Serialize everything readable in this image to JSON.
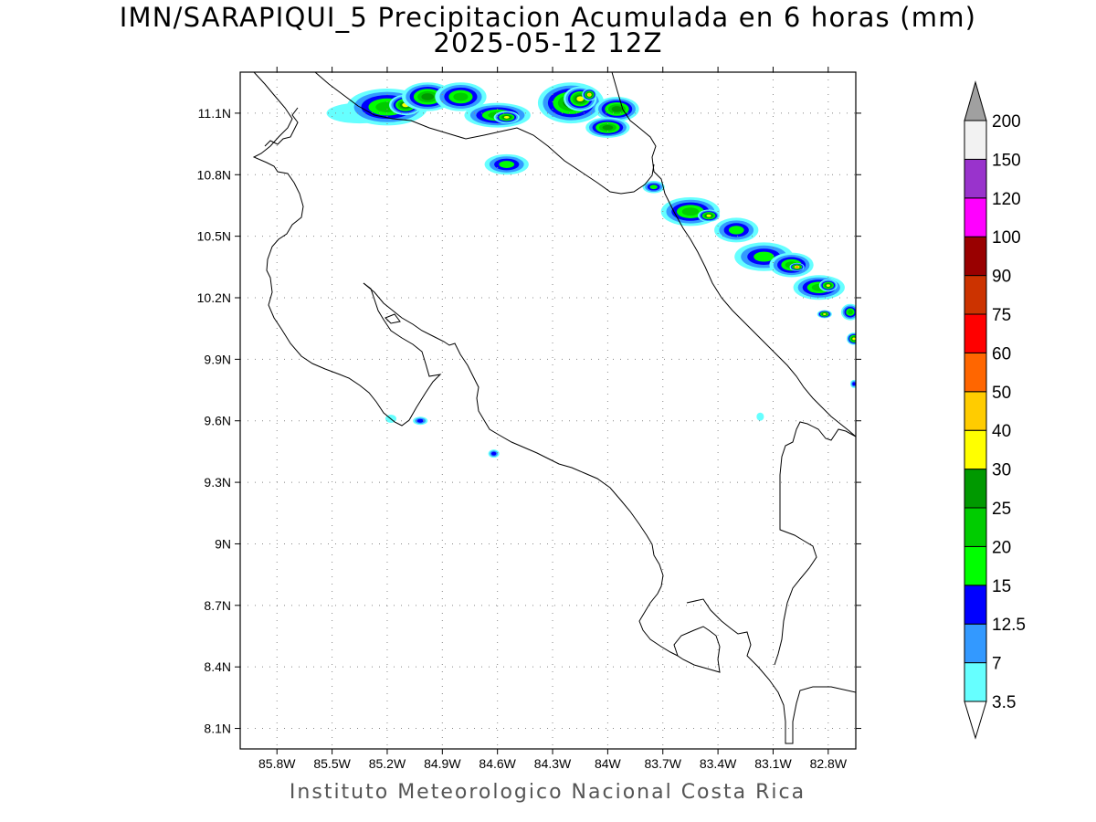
{
  "title": "IMN/SARAPIQUI_5 Precipitacion Acumulada en 6 horas (mm)",
  "subtitle": "2025-05-12 12Z",
  "footer": "Instituto Meteorologico Nacional Costa Rica",
  "map": {
    "lon_range": [
      -86.0,
      -82.65
    ],
    "lat_range": [
      8.0,
      11.3
    ],
    "x_ticks": [
      {
        "lon": -85.8,
        "label": "85.8W"
      },
      {
        "lon": -85.5,
        "label": "85.5W"
      },
      {
        "lon": -85.2,
        "label": "85.2W"
      },
      {
        "lon": -84.9,
        "label": "84.9W"
      },
      {
        "lon": -84.6,
        "label": "84.6W"
      },
      {
        "lon": -84.3,
        "label": "84.3W"
      },
      {
        "lon": -84.0,
        "label": "84W"
      },
      {
        "lon": -83.7,
        "label": "83.7W"
      },
      {
        "lon": -83.4,
        "label": "83.4W"
      },
      {
        "lon": -83.1,
        "label": "83.1W"
      },
      {
        "lon": -82.8,
        "label": "82.8W"
      }
    ],
    "y_ticks": [
      {
        "lat": 11.1,
        "label": "11.1N"
      },
      {
        "lat": 10.8,
        "label": "10.8N"
      },
      {
        "lat": 10.5,
        "label": "10.5N"
      },
      {
        "lat": 10.2,
        "label": "10.2N"
      },
      {
        "lat": 9.9,
        "label": "9.9N"
      },
      {
        "lat": 9.6,
        "label": "9.6N"
      },
      {
        "lat": 9.3,
        "label": "9.3N"
      },
      {
        "lat": 9.0,
        "label": "9N"
      },
      {
        "lat": 8.7,
        "label": "8.7N"
      },
      {
        "lat": 8.4,
        "label": "8.4N"
      },
      {
        "lat": 8.1,
        "label": "8.1N"
      }
    ],
    "grid": "dotted"
  },
  "colorbar": {
    "unit": "mm",
    "bins": [
      {
        "label": "3.5",
        "color": "#66FFFF"
      },
      {
        "label": "7",
        "color": "#3399FF"
      },
      {
        "label": "12.5",
        "color": "#0000FF"
      },
      {
        "label": "15",
        "color": "#00FF00"
      },
      {
        "label": "20",
        "color": "#00CC00"
      },
      {
        "label": "25",
        "color": "#009900"
      },
      {
        "label": "30",
        "color": "#FFFF00"
      },
      {
        "label": "40",
        "color": "#FFCC00"
      },
      {
        "label": "50",
        "color": "#FF6600"
      },
      {
        "label": "60",
        "color": "#FF0000"
      },
      {
        "label": "75",
        "color": "#CC3300"
      },
      {
        "label": "90",
        "color": "#990000"
      },
      {
        "label": "100",
        "color": "#FF00FF"
      },
      {
        "label": "120",
        "color": "#9933CC"
      },
      {
        "label": "150",
        "color": "#F2F2F2"
      },
      {
        "label": "200",
        "color": "#A0A0A0"
      }
    ]
  },
  "precip_cells": [
    {
      "lon": -85.35,
      "lat": 11.1,
      "rx": 0.18,
      "ry": 0.05,
      "level": 0
    },
    {
      "lon": -85.2,
      "lat": 11.13,
      "rx": 0.22,
      "ry": 0.09,
      "level": 4
    },
    {
      "lon": -85.1,
      "lat": 11.14,
      "rx": 0.09,
      "ry": 0.05,
      "level": 6
    },
    {
      "lon": -84.98,
      "lat": 11.18,
      "rx": 0.14,
      "ry": 0.07,
      "level": 5
    },
    {
      "lon": -84.8,
      "lat": 11.18,
      "rx": 0.14,
      "ry": 0.07,
      "level": 4
    },
    {
      "lon": -84.6,
      "lat": 11.09,
      "rx": 0.18,
      "ry": 0.06,
      "level": 4
    },
    {
      "lon": -84.55,
      "lat": 11.08,
      "rx": 0.07,
      "ry": 0.03,
      "level": 6
    },
    {
      "lon": -84.2,
      "lat": 11.15,
      "rx": 0.18,
      "ry": 0.1,
      "level": 5
    },
    {
      "lon": -84.15,
      "lat": 11.17,
      "rx": 0.09,
      "ry": 0.06,
      "level": 6
    },
    {
      "lon": -84.1,
      "lat": 11.19,
      "rx": 0.04,
      "ry": 0.03,
      "level": 7
    },
    {
      "lon": -83.95,
      "lat": 11.12,
      "rx": 0.12,
      "ry": 0.06,
      "level": 5
    },
    {
      "lon": -84.0,
      "lat": 11.03,
      "rx": 0.12,
      "ry": 0.05,
      "level": 5
    },
    {
      "lon": -84.55,
      "lat": 10.85,
      "rx": 0.12,
      "ry": 0.05,
      "level": 3
    },
    {
      "lon": -83.75,
      "lat": 10.74,
      "rx": 0.06,
      "ry": 0.03,
      "level": 3
    },
    {
      "lon": -83.55,
      "lat": 10.62,
      "rx": 0.16,
      "ry": 0.07,
      "level": 4
    },
    {
      "lon": -83.45,
      "lat": 10.6,
      "rx": 0.06,
      "ry": 0.03,
      "level": 6
    },
    {
      "lon": -83.3,
      "lat": 10.53,
      "rx": 0.12,
      "ry": 0.06,
      "level": 3
    },
    {
      "lon": -83.15,
      "lat": 10.4,
      "rx": 0.16,
      "ry": 0.07,
      "level": 3
    },
    {
      "lon": -83.0,
      "lat": 10.36,
      "rx": 0.12,
      "ry": 0.06,
      "level": 4
    },
    {
      "lon": -82.97,
      "lat": 10.35,
      "rx": 0.04,
      "ry": 0.02,
      "level": 8
    },
    {
      "lon": -82.85,
      "lat": 10.25,
      "rx": 0.14,
      "ry": 0.06,
      "level": 4
    },
    {
      "lon": -82.8,
      "lat": 10.26,
      "rx": 0.05,
      "ry": 0.03,
      "level": 6
    },
    {
      "lon": -82.82,
      "lat": 10.12,
      "rx": 0.04,
      "ry": 0.02,
      "level": 6
    },
    {
      "lon": -82.68,
      "lat": 10.13,
      "rx": 0.05,
      "ry": 0.04,
      "level": 4
    },
    {
      "lon": -82.66,
      "lat": 10.0,
      "rx": 0.04,
      "ry": 0.03,
      "level": 6
    },
    {
      "lon": -82.66,
      "lat": 9.78,
      "rx": 0.02,
      "ry": 0.02,
      "level": 2
    },
    {
      "lon": -85.02,
      "lat": 9.6,
      "rx": 0.04,
      "ry": 0.02,
      "level": 2
    },
    {
      "lon": -84.62,
      "lat": 9.44,
      "rx": 0.03,
      "ry": 0.02,
      "level": 2
    },
    {
      "lon": -85.18,
      "lat": 9.61,
      "rx": 0.03,
      "ry": 0.02,
      "level": 0
    },
    {
      "lon": -83.17,
      "lat": 9.62,
      "rx": 0.02,
      "ry": 0.02,
      "level": 0
    }
  ]
}
